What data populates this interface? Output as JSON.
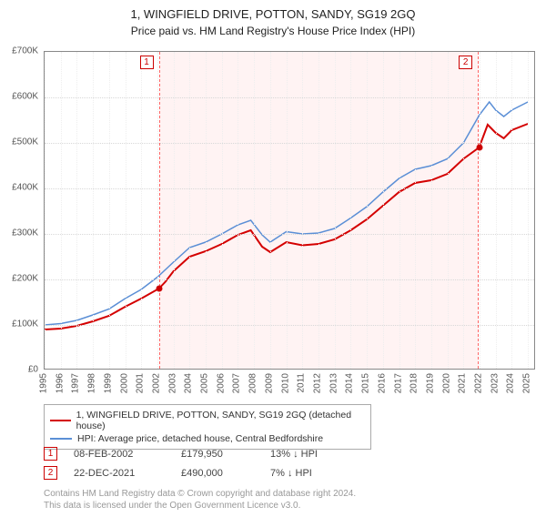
{
  "title": "1, WINGFIELD DRIVE, POTTON, SANDY, SG19 2GQ",
  "subtitle": "Price paid vs. HM Land Registry's House Price Index (HPI)",
  "chart": {
    "type": "line",
    "xlim": [
      1995,
      2025.5
    ],
    "ylim": [
      0,
      700000
    ],
    "ytick_step": 100000,
    "ytick_labels": [
      "£0",
      "£100K",
      "£200K",
      "£300K",
      "£400K",
      "£500K",
      "£600K",
      "£700K"
    ],
    "xtick_years": [
      1995,
      1996,
      1997,
      1998,
      1999,
      2000,
      2001,
      2002,
      2003,
      2004,
      2005,
      2006,
      2007,
      2008,
      2009,
      2010,
      2011,
      2012,
      2013,
      2014,
      2015,
      2016,
      2017,
      2018,
      2019,
      2020,
      2021,
      2022,
      2023,
      2024,
      2025
    ],
    "background_color": "#ffffff",
    "grid_color": "#d8d8d8",
    "shade_color": "#fff3f3",
    "shade_border": "#ff6666",
    "series": [
      {
        "name": "property",
        "label": "1, WINGFIELD DRIVE, POTTON, SANDY, SG19 2GQ (detached house)",
        "color": "#d40000",
        "width": 2,
        "points": [
          [
            1995.0,
            90000
          ],
          [
            1996.0,
            92000
          ],
          [
            1997.0,
            98000
          ],
          [
            1998.0,
            108000
          ],
          [
            1999.0,
            120000
          ],
          [
            2000.0,
            140000
          ],
          [
            2001.0,
            158000
          ],
          [
            2002.1,
            179950
          ],
          [
            2002.5,
            195000
          ],
          [
            2003.0,
            218000
          ],
          [
            2004.0,
            250000
          ],
          [
            2005.0,
            262000
          ],
          [
            2006.0,
            278000
          ],
          [
            2007.0,
            298000
          ],
          [
            2007.8,
            308000
          ],
          [
            2008.5,
            272000
          ],
          [
            2009.0,
            260000
          ],
          [
            2010.0,
            282000
          ],
          [
            2011.0,
            275000
          ],
          [
            2012.0,
            278000
          ],
          [
            2013.0,
            288000
          ],
          [
            2014.0,
            308000
          ],
          [
            2015.0,
            332000
          ],
          [
            2016.0,
            362000
          ],
          [
            2017.0,
            392000
          ],
          [
            2018.0,
            412000
          ],
          [
            2019.0,
            418000
          ],
          [
            2020.0,
            432000
          ],
          [
            2021.0,
            465000
          ],
          [
            2021.97,
            490000
          ],
          [
            2022.5,
            540000
          ],
          [
            2023.0,
            522000
          ],
          [
            2023.5,
            510000
          ],
          [
            2024.0,
            528000
          ],
          [
            2025.0,
            542000
          ]
        ]
      },
      {
        "name": "hpi",
        "label": "HPI: Average price, detached house, Central Bedfordshire",
        "color": "#5b8fd6",
        "width": 1.5,
        "points": [
          [
            1995.0,
            100000
          ],
          [
            1996.0,
            103000
          ],
          [
            1997.0,
            110000
          ],
          [
            1998.0,
            122000
          ],
          [
            1999.0,
            135000
          ],
          [
            2000.0,
            158000
          ],
          [
            2001.0,
            178000
          ],
          [
            2002.0,
            205000
          ],
          [
            2003.0,
            238000
          ],
          [
            2004.0,
            270000
          ],
          [
            2005.0,
            282000
          ],
          [
            2006.0,
            300000
          ],
          [
            2007.0,
            320000
          ],
          [
            2007.8,
            330000
          ],
          [
            2008.5,
            298000
          ],
          [
            2009.0,
            282000
          ],
          [
            2010.0,
            305000
          ],
          [
            2011.0,
            300000
          ],
          [
            2012.0,
            302000
          ],
          [
            2013.0,
            312000
          ],
          [
            2014.0,
            335000
          ],
          [
            2015.0,
            360000
          ],
          [
            2016.0,
            392000
          ],
          [
            2017.0,
            422000
          ],
          [
            2018.0,
            442000
          ],
          [
            2019.0,
            450000
          ],
          [
            2020.0,
            465000
          ],
          [
            2021.0,
            500000
          ],
          [
            2022.0,
            562000
          ],
          [
            2022.6,
            590000
          ],
          [
            2023.0,
            572000
          ],
          [
            2023.5,
            558000
          ],
          [
            2024.0,
            572000
          ],
          [
            2025.0,
            590000
          ]
        ]
      }
    ],
    "sale_markers": [
      {
        "index": "1",
        "x": 2002.1,
        "y": 179950
      },
      {
        "index": "2",
        "x": 2021.97,
        "y": 490000
      }
    ],
    "marker_label_tops": [
      {
        "index": "1",
        "x": 2001.3
      },
      {
        "index": "2",
        "x": 2021.1
      }
    ]
  },
  "legend": {
    "items": [
      {
        "color": "#d40000",
        "label": "1, WINGFIELD DRIVE, POTTON, SANDY, SG19 2GQ (detached house)"
      },
      {
        "color": "#5b8fd6",
        "label": "HPI: Average price, detached house, Central Bedfordshire"
      }
    ]
  },
  "sales": [
    {
      "index": "1",
      "date": "08-FEB-2002",
      "price": "£179,950",
      "diff": "13% ↓ HPI"
    },
    {
      "index": "2",
      "date": "22-DEC-2021",
      "price": "£490,000",
      "diff": "7% ↓ HPI"
    }
  ],
  "footnote_line1": "Contains HM Land Registry data © Crown copyright and database right 2024.",
  "footnote_line2": "This data is licensed under the Open Government Licence v3.0."
}
